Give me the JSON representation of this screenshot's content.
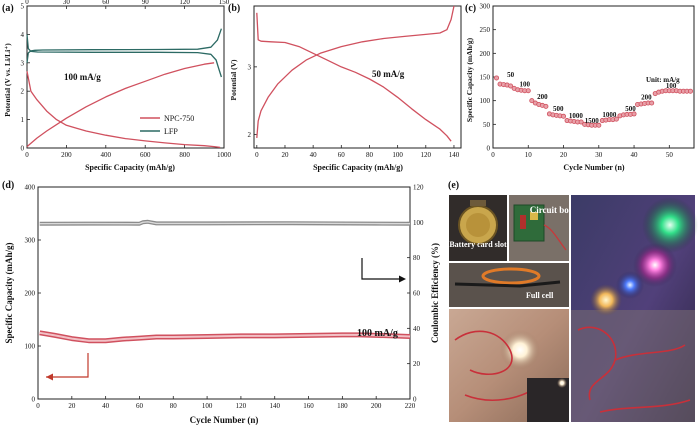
{
  "panels": {
    "a": "(a)",
    "b": "(b)",
    "c": "(c)",
    "d": "(d)",
    "e": "(e)"
  },
  "colors": {
    "red": "#d0515f",
    "teal": "#2c6a64",
    "gray": "#8c8c8c",
    "arrow": "#c0392b"
  },
  "chart_data": [
    {
      "id": "a",
      "type": "line",
      "xlabel": "Specific Capacity  (mAh/g)",
      "ylabel": "Potential (V vs. Li/Li⁺)",
      "xlim": [
        0,
        1000
      ],
      "ylim": [
        0,
        5
      ],
      "xticks": [
        "0",
        "200",
        "400",
        "600",
        "800",
        "1000"
      ],
      "top_xlim": [
        0,
        150
      ],
      "top_xticks": [
        "0",
        "30",
        "60",
        "90",
        "120",
        "150"
      ],
      "yticks": [
        "0",
        "1",
        "2",
        "3",
        "4",
        "5"
      ],
      "annotation": "100 mA/g",
      "legend": [
        "NPC-750",
        "LFP"
      ],
      "series": [
        {
          "name": "NPC-750 discharge",
          "color": "red",
          "x": [
            0,
            20,
            50,
            100,
            150,
            200,
            300,
            400,
            500,
            600,
            700,
            800,
            900,
            950,
            980
          ],
          "y": [
            2.7,
            2.0,
            1.7,
            1.3,
            1.0,
            0.8,
            0.6,
            0.45,
            0.33,
            0.25,
            0.18,
            0.12,
            0.08,
            0.05,
            0.02
          ]
        },
        {
          "name": "NPC-750 charge",
          "color": "red",
          "x": [
            0,
            50,
            100,
            200,
            300,
            400,
            500,
            600,
            700,
            800,
            900,
            950
          ],
          "y": [
            0.05,
            0.35,
            0.6,
            1.05,
            1.45,
            1.8,
            2.1,
            2.35,
            2.6,
            2.8,
            2.95,
            3.0
          ]
        },
        {
          "name": "LFP charge",
          "color": "teal",
          "x": [
            0,
            1,
            3,
            6,
            12,
            50,
            100,
            130,
            140,
            145,
            148
          ],
          "y": [
            3.0,
            3.35,
            3.42,
            3.44,
            3.45,
            3.46,
            3.47,
            3.48,
            3.55,
            3.8,
            4.2
          ]
        },
        {
          "name": "LFP discharge",
          "color": "teal",
          "x": [
            0,
            1,
            3,
            8,
            50,
            100,
            130,
            140,
            144,
            146,
            148
          ],
          "y": [
            4.0,
            3.5,
            3.4,
            3.38,
            3.37,
            3.37,
            3.36,
            3.3,
            3.1,
            2.8,
            2.5
          ]
        }
      ]
    },
    {
      "id": "b",
      "type": "line",
      "xlabel": "Specific Capacity  (mAh/g)",
      "ylabel": "Potential (V)",
      "xlim": [
        -2,
        145
      ],
      "ylim": [
        1.8,
        3.9
      ],
      "xticks": [
        "0",
        "20",
        "40",
        "60",
        "80",
        "100",
        "120",
        "140"
      ],
      "yticks": [
        "2",
        "3"
      ],
      "annotation": "50 mA/g",
      "series": [
        {
          "name": "discharge",
          "color": "red",
          "x": [
            0,
            1,
            3,
            10,
            20,
            30,
            40,
            50,
            60,
            70,
            80,
            90,
            100,
            110,
            120,
            130,
            135,
            138
          ],
          "y": [
            3.8,
            3.4,
            3.38,
            3.37,
            3.36,
            3.3,
            3.2,
            3.1,
            3.0,
            2.92,
            2.82,
            2.7,
            2.55,
            2.38,
            2.22,
            2.08,
            1.98,
            1.9
          ]
        },
        {
          "name": "charge",
          "color": "red",
          "x": [
            0,
            1,
            3,
            8,
            15,
            25,
            35,
            45,
            60,
            75,
            90,
            105,
            120,
            130,
            135,
            138,
            140
          ],
          "y": [
            1.95,
            2.2,
            2.35,
            2.55,
            2.75,
            2.95,
            3.1,
            3.2,
            3.3,
            3.37,
            3.42,
            3.45,
            3.48,
            3.5,
            3.55,
            3.7,
            3.9
          ]
        }
      ]
    },
    {
      "id": "c",
      "type": "scatter",
      "xlabel": "Cycle Number (n)",
      "ylabel": "Specific Capacity (mAh/g)",
      "xlim": [
        0,
        57
      ],
      "ylim": [
        0,
        300
      ],
      "xticks": [
        "0",
        "10",
        "20",
        "30",
        "40",
        "50"
      ],
      "yticks": [
        "0",
        "50",
        "100",
        "150",
        "200",
        "250",
        "300"
      ],
      "unit_note": "Unit: mA/g",
      "groups": [
        {
          "rate": "50",
          "x": [
            1,
            2,
            3,
            4,
            5
          ],
          "y": [
            148,
            135,
            134,
            133,
            131
          ]
        },
        {
          "rate": "100",
          "x": [
            6,
            7,
            8,
            9,
            10
          ],
          "y": [
            126,
            123,
            122,
            121,
            121
          ]
        },
        {
          "rate": "200",
          "x": [
            11,
            12,
            13,
            14,
            15
          ],
          "y": [
            100,
            95,
            92,
            90,
            88
          ]
        },
        {
          "rate": "500",
          "x": [
            16,
            17,
            18,
            19,
            20
          ],
          "y": [
            72,
            70,
            69,
            68,
            67
          ]
        },
        {
          "rate": "1000",
          "x": [
            21,
            22,
            23,
            24,
            25
          ],
          "y": [
            58,
            57,
            56,
            55,
            55
          ]
        },
        {
          "rate": "1500",
          "x": [
            26,
            27,
            28,
            29,
            30
          ],
          "y": [
            50,
            49,
            48,
            48,
            48
          ]
        },
        {
          "rate": "1000",
          "x": [
            31,
            32,
            33,
            34,
            35
          ],
          "y": [
            58,
            59,
            60,
            60,
            61
          ]
        },
        {
          "rate": "500",
          "x": [
            36,
            37,
            38,
            39,
            40
          ],
          "y": [
            68,
            70,
            71,
            71,
            72
          ]
        },
        {
          "rate": "200",
          "x": [
            41,
            42,
            43,
            44,
            45
          ],
          "y": [
            92,
            93,
            94,
            95,
            95
          ]
        },
        {
          "rate": "100",
          "x": [
            46,
            47,
            48,
            49,
            50,
            51,
            52,
            53,
            54,
            55,
            56
          ],
          "y": [
            115,
            118,
            120,
            121,
            121,
            121,
            121,
            120,
            120,
            120,
            120
          ]
        }
      ],
      "labels": [
        {
          "text": "50",
          "x": 5,
          "y": 150
        },
        {
          "text": "100",
          "x": 9,
          "y": 130
        },
        {
          "text": "200",
          "x": 14,
          "y": 104
        },
        {
          "text": "500",
          "x": 18.5,
          "y": 78
        },
        {
          "text": "1000",
          "x": 23.5,
          "y": 63
        },
        {
          "text": "1500",
          "x": 28,
          "y": 53
        },
        {
          "text": "1000",
          "x": 33,
          "y": 65
        },
        {
          "text": "500",
          "x": 39,
          "y": 78
        },
        {
          "text": "200",
          "x": 43.5,
          "y": 102
        },
        {
          "text": "100",
          "x": 50.5,
          "y": 127
        }
      ]
    },
    {
      "id": "d",
      "type": "line",
      "xlabel": "Cycle Number (n)",
      "ylabel": "Specific Capacity (mAh/g)",
      "y2label": "Coulombic Efficiency (%)",
      "xlim": [
        0,
        220
      ],
      "ylim": [
        0,
        400
      ],
      "y2lim": [
        0,
        120
      ],
      "xticks": [
        "0",
        "20",
        "40",
        "60",
        "80",
        "100",
        "120",
        "140",
        "160",
        "180",
        "200",
        "220"
      ],
      "yticks": [
        "0",
        "100",
        "200",
        "300",
        "400"
      ],
      "y2ticks": [
        "0",
        "20",
        "40",
        "60",
        "80",
        "100",
        "120"
      ],
      "annotation": "100 mA/g",
      "series": [
        {
          "name": "Capacity",
          "color": "red",
          "axis": "left",
          "x": [
            1,
            10,
            20,
            30,
            40,
            50,
            60,
            70,
            80,
            100,
            120,
            140,
            160,
            180,
            190,
            200,
            210,
            220
          ],
          "y": [
            125,
            120,
            114,
            110,
            110,
            113,
            115,
            117,
            117,
            118,
            119,
            119,
            120,
            121,
            121,
            120,
            119,
            118
          ]
        },
        {
          "name": "Coulombic Efficiency",
          "color": "gray",
          "axis": "right",
          "x": [
            1,
            30,
            60,
            62,
            65,
            70,
            100,
            150,
            200,
            220
          ],
          "y": [
            99.2,
            99.3,
            99.2,
            100,
            100.3,
            99.4,
            99.4,
            99.5,
            99.3,
            99.2
          ]
        }
      ]
    }
  ],
  "photos": {
    "battery_label": "Battery card slot",
    "circuit_label": "Circuit board",
    "fullcell_label": "Full cell"
  }
}
